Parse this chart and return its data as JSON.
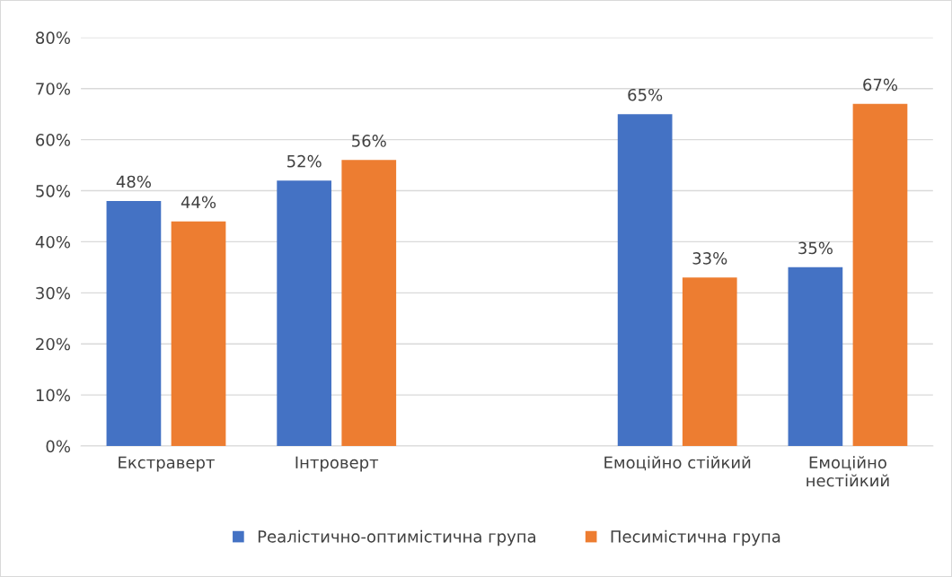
{
  "chart_data": {
    "type": "bar",
    "categories": [
      "Екстраверт",
      "Інтроверт",
      null,
      "Емоційно стійкий",
      "Емоційно нестійкий"
    ],
    "series": [
      {
        "name": "Реалістично-оптимістична група",
        "color": "#4472c4",
        "values": [
          48,
          52,
          null,
          65,
          35
        ],
        "value_labels": [
          "48%",
          "52%",
          null,
          "65%",
          "35%"
        ]
      },
      {
        "name": "Песимістична група",
        "color": "#ed7d31",
        "values": [
          44,
          56,
          null,
          33,
          67
        ],
        "value_labels": [
          "44%",
          "56%",
          null,
          "33%",
          "67%"
        ]
      }
    ],
    "ylim": [
      0,
      80
    ],
    "yticks": [
      {
        "value": 0,
        "label": "0%"
      },
      {
        "value": 10,
        "label": "10%"
      },
      {
        "value": 20,
        "label": "20%"
      },
      {
        "value": 30,
        "label": "30%"
      },
      {
        "value": 40,
        "label": "40%"
      },
      {
        "value": 50,
        "label": "50%"
      },
      {
        "value": 60,
        "label": "60%"
      },
      {
        "value": 70,
        "label": "70%"
      },
      {
        "value": 80,
        "label": "80%"
      }
    ],
    "grid": "y",
    "legend": "bottom"
  }
}
